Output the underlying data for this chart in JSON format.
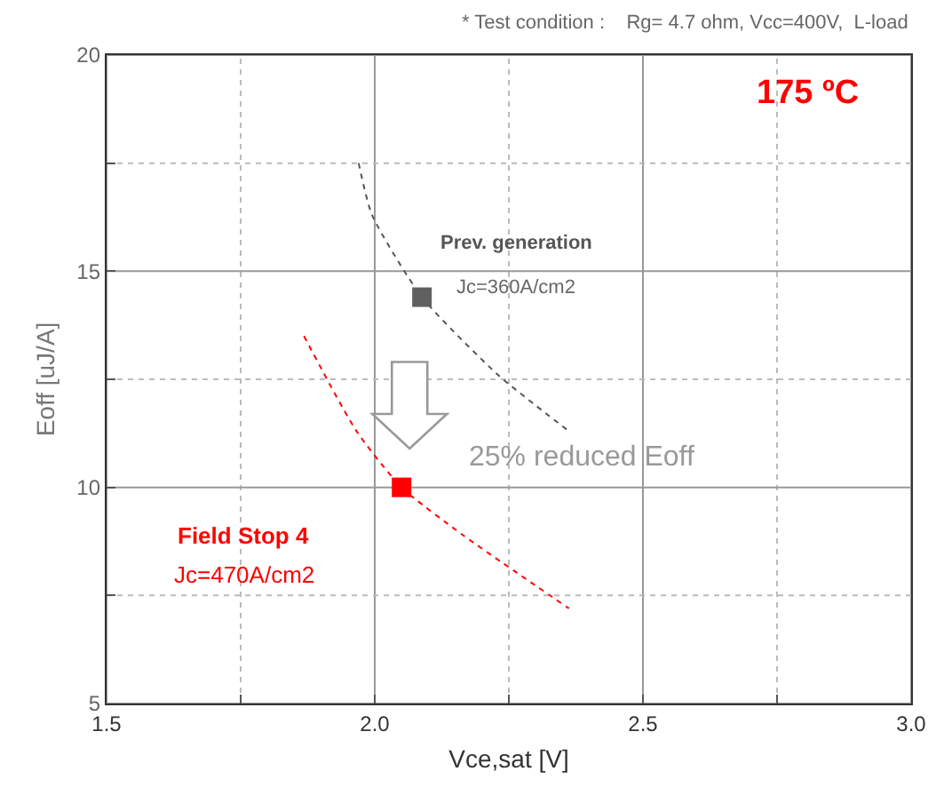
{
  "chart_data": {
    "type": "line",
    "xlabel": "Vce,sat [V]",
    "ylabel": "Eoff [uJ/A]",
    "xlim": [
      1.5,
      3.0
    ],
    "ylim": [
      5,
      20
    ],
    "xticks": [
      1.5,
      {
        "value": 1.75,
        "label": null
      },
      {
        "value": 2,
        "label": "2.0"
      },
      {
        "value": 2.25,
        "label": null
      },
      2.5,
      {
        "value": 2.75,
        "label": null
      },
      {
        "value": 3,
        "label": "3.0"
      }
    ],
    "yticks": [
      5,
      {
        "value": 7.5,
        "label": null
      },
      10,
      {
        "value": 12.5,
        "label": null
      },
      15,
      {
        "value": 17.5,
        "label": null
      },
      20
    ],
    "grid": true,
    "series": [
      {
        "color": "#555555",
        "line_style": "dotted",
        "marker": "none",
        "x": [
          1.97,
          1.995,
          2.088,
          2.23,
          2.362
        ],
        "values": [
          17.5,
          16.3,
          14.4,
          12.6,
          11.3
        ]
      },
      {
        "type": "scatter",
        "color": "#606060",
        "marker": "square",
        "x": [
          2.088
        ],
        "values": [
          14.4
        ]
      },
      {
        "color": "#ff0000",
        "line_style": "dotted",
        "marker": "none",
        "x": [
          1.868,
          1.966,
          2.05,
          2.164,
          2.362
        ],
        "values": [
          13.5,
          11.3,
          10.0,
          8.9,
          7.2
        ]
      },
      {
        "type": "scatter",
        "color": "#ff0000",
        "marker": "square",
        "x": [
          2.05
        ],
        "values": [
          10.0
        ]
      }
    ],
    "annotations": [
      "* Test condition :    Rg= 4.7 ohm, Vcc=400V,  L-load",
      "175 ºC",
      "Prev. generation",
      "Jc=360A/cm2",
      "25% reduced Eoff",
      "Field Stop 4",
      "Jc=470A/cm2"
    ]
  }
}
